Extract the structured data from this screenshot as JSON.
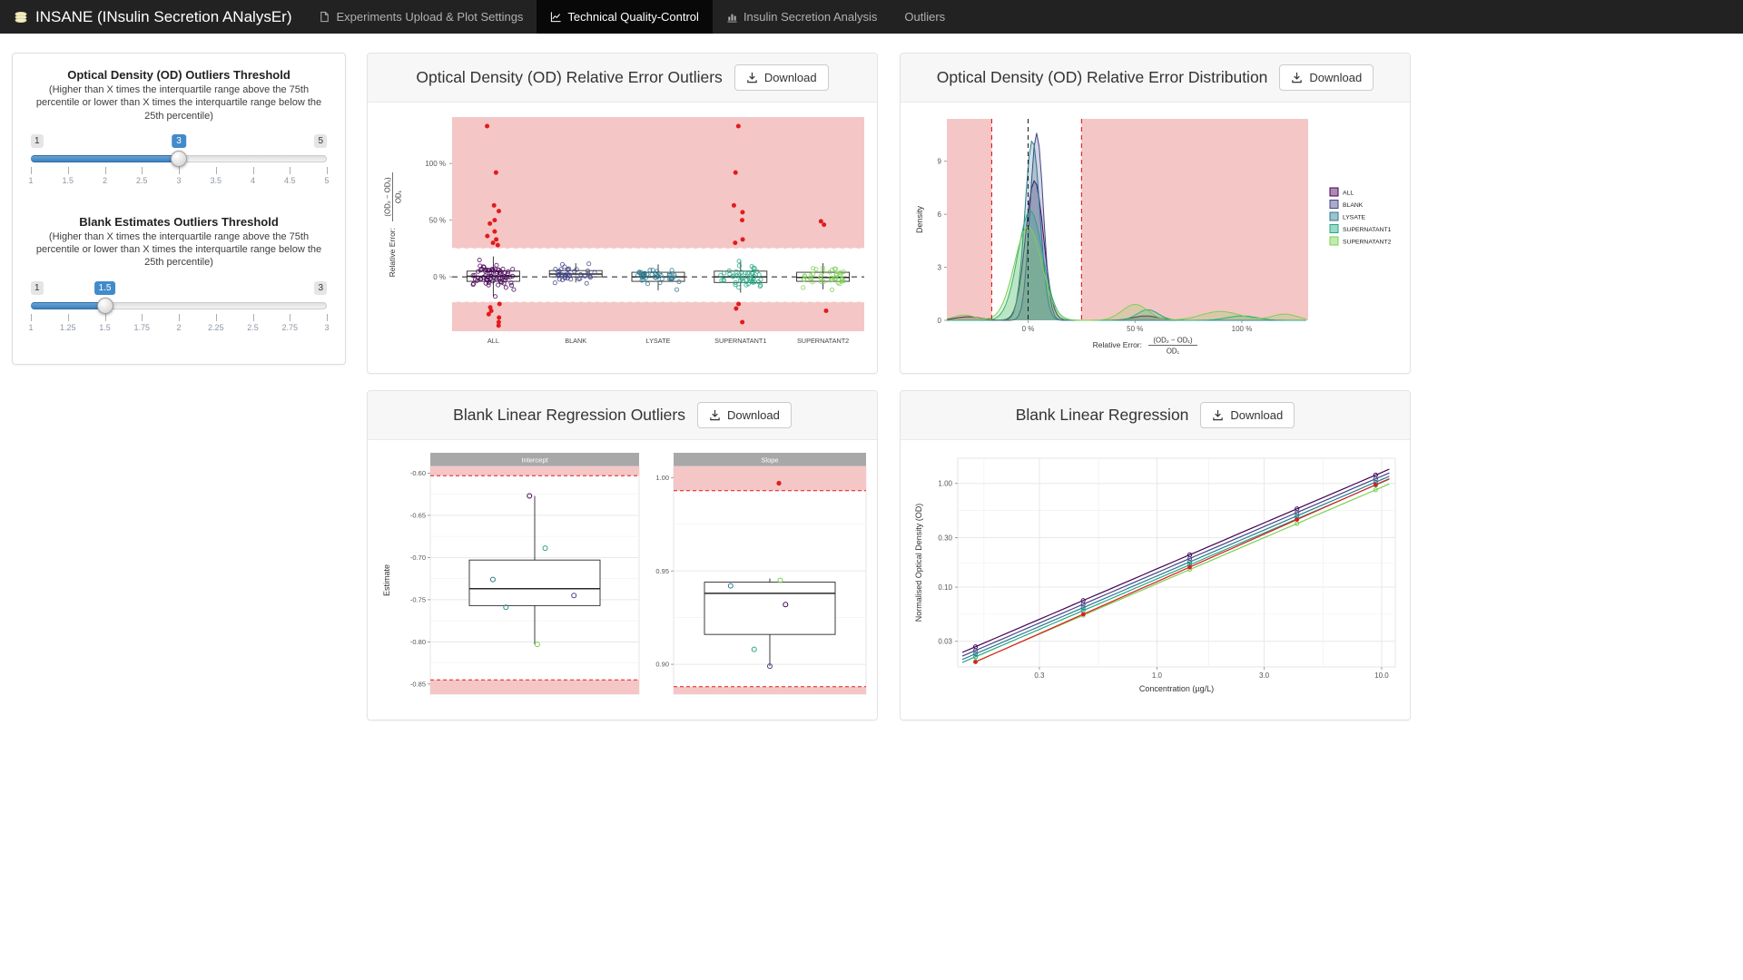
{
  "navbar": {
    "brand": "INSANE (INsulin Secretion ANalysEr)",
    "items": [
      {
        "label": "Experiments Upload & Plot Settings",
        "icon": "file-icon",
        "active": false
      },
      {
        "label": "Technical Quality-Control",
        "icon": "chart-line-icon",
        "active": true
      },
      {
        "label": "Insulin Secretion Analysis",
        "icon": "chart-bar-icon",
        "active": false
      },
      {
        "label": "Outliers",
        "icon": "",
        "active": false
      }
    ]
  },
  "sidebar": {
    "sliders": [
      {
        "title": "Optical Density (OD) Outliers Threshold",
        "subtitle": "(Higher than X times the interquartile range above the 75th percentile or lower than X times the interquartile range below the 25th percentile)",
        "min": 1,
        "max": 5,
        "value": 3,
        "min_label": "1",
        "max_label": "5",
        "value_label": "3",
        "ticks": [
          "1",
          "1.5",
          "2",
          "2.5",
          "3",
          "3.5",
          "4",
          "4.5",
          "5"
        ]
      },
      {
        "title": "Blank Estimates Outliers Threshold",
        "subtitle": "(Higher than X times the interquartile range above the 75th percentile or lower than X times the interquartile range below the 25th percentile)",
        "min": 1,
        "max": 3,
        "value": 1.5,
        "min_label": "1",
        "max_label": "3",
        "value_label": "1.5",
        "ticks": [
          "1",
          "1.25",
          "1.5",
          "1.75",
          "2",
          "2.25",
          "2.5",
          "2.75",
          "3"
        ]
      }
    ]
  },
  "panels": [
    {
      "title": "Optical Density (OD) Relative Error Outliers",
      "download": "Download"
    },
    {
      "title": "Optical Density (OD) Relative Error Distribution",
      "download": "Download"
    },
    {
      "title": "Blank Linear Regression Outliers",
      "download": "Download"
    },
    {
      "title": "Blank Linear Regression",
      "download": "Download"
    }
  ],
  "chart_data": [
    {
      "type": "box-jitter",
      "title": "Optical Density (OD) Relative Error Outliers",
      "ylabel": {
        "prefix": "Relative Error:",
        "numerator": "(OD₂ − OD₁)",
        "denominator": "OD₁"
      },
      "ylim": [
        -48,
        141
      ],
      "yticks": [
        {
          "v": 0,
          "label": "0 %"
        },
        {
          "v": 50,
          "label": "50 %"
        },
        {
          "v": 100,
          "label": "100 %"
        }
      ],
      "threshold_upper": 25,
      "threshold_lower": -22,
      "region_color": "#f5c6c6",
      "outlier_color": "#e31a1c",
      "categories": [
        {
          "name": "ALL",
          "color": "#440154",
          "n_jitter": 75,
          "jitter_sd": 6,
          "box": {
            "q1": -4,
            "median": 0.5,
            "q3": 5,
            "whisker_low": -17,
            "whisker_high": 18
          },
          "outliers_red": [
            133,
            92,
            63,
            58,
            50,
            47,
            40,
            36,
            33,
            30,
            28,
            -24,
            -27,
            -30,
            -33,
            -36,
            -40,
            -43
          ]
        },
        {
          "name": "BLANK",
          "color": "#414487",
          "n_jitter": 38,
          "jitter_sd": 4,
          "box": {
            "q1": 0,
            "median": 2.5,
            "q3": 5.5,
            "whisker_low": -5,
            "whisker_high": 12
          },
          "outliers_red": []
        },
        {
          "name": "LYSATE",
          "color": "#2a788e",
          "n_jitter": 42,
          "jitter_sd": 4.5,
          "box": {
            "q1": -4,
            "median": 0,
            "q3": 4,
            "whisker_low": -12,
            "whisker_high": 11
          },
          "outliers_red": []
        },
        {
          "name": "SUPERNATANT1",
          "color": "#22a884",
          "n_jitter": 48,
          "jitter_sd": 5.5,
          "box": {
            "q1": -5,
            "median": 0,
            "q3": 5,
            "whisker_low": -14,
            "whisker_high": 14
          },
          "outliers_red": [
            133,
            92,
            63,
            57,
            50,
            33,
            30,
            -24,
            -28,
            -40
          ]
        },
        {
          "name": "SUPERNATANT2",
          "color": "#7ad151",
          "n_jitter": 40,
          "jitter_sd": 5,
          "box": {
            "q1": -4,
            "median": -0.5,
            "q3": 4,
            "whisker_low": -11,
            "whisker_high": 12
          },
          "outliers_red": [
            49,
            46,
            -30
          ]
        }
      ]
    },
    {
      "type": "density",
      "title": "Optical Density (OD) Relative Error Distribution",
      "xlabel": {
        "prefix": "Relative Error:",
        "numerator": "(OD₂ − OD₁)",
        "denominator": "OD₁"
      },
      "ylabel": "Density",
      "xlim": [
        -38,
        131
      ],
      "ylim": [
        0,
        11.4
      ],
      "xticks": [
        {
          "v": 0,
          "label": "0 %"
        },
        {
          "v": 50,
          "label": "50 %"
        },
        {
          "v": 100,
          "label": "100 %"
        }
      ],
      "yticks": [
        0,
        3,
        6,
        9
      ],
      "threshold_lower": -17,
      "threshold_upper": 25,
      "region_color": "#f5c6c6",
      "outlier_color": "#e31a1c",
      "series": [
        {
          "name": "ALL",
          "color": "#440154",
          "peaks": [
            {
              "mu": 3,
              "sigma": 4.2,
              "h": 7.9
            },
            {
              "mu": 55,
              "sigma": 6,
              "h": 0.25
            },
            {
              "mu": -28,
              "sigma": 6,
              "h": 0.2
            }
          ]
        },
        {
          "name": "BLANK",
          "color": "#414487",
          "peaks": [
            {
              "mu": 4,
              "sigma": 3.1,
              "h": 10.6
            }
          ]
        },
        {
          "name": "LYSATE",
          "color": "#2a788e",
          "peaks": [
            {
              "mu": 2,
              "sigma": 3.5,
              "h": 10.2
            }
          ]
        },
        {
          "name": "SUPERNATANT1",
          "color": "#22a884",
          "peaks": [
            {
              "mu": 1,
              "sigma": 5.8,
              "h": 6.2
            },
            {
              "mu": 56,
              "sigma": 5,
              "h": 0.6
            },
            {
              "mu": 100,
              "sigma": 7,
              "h": 0.25
            }
          ]
        },
        {
          "name": "SUPERNATANT2",
          "color": "#7ad151",
          "peaks": [
            {
              "mu": 0,
              "sigma": 6.4,
              "h": 5.3
            },
            {
              "mu": 50,
              "sigma": 6,
              "h": 0.9
            },
            {
              "mu": 90,
              "sigma": 9,
              "h": 0.5
            },
            {
              "mu": 120,
              "sigma": 6,
              "h": 0.35
            },
            {
              "mu": -30,
              "sigma": 5,
              "h": 0.3
            }
          ]
        }
      ],
      "legend": [
        "ALL",
        "BLANK",
        "LYSATE",
        "SUPERNATANT1",
        "SUPERNATANT2"
      ]
    },
    {
      "type": "facet-box",
      "title": "Blank Linear Regression Outliers",
      "ylabel": "Estimate",
      "region_color": "#f5c6c6",
      "outlier_color": "#e31a1c",
      "facets": [
        {
          "name": "Intercept",
          "ylim": [
            -0.862,
            -0.592
          ],
          "yticks": [
            -0.6,
            -0.65,
            -0.7,
            -0.75,
            -0.8,
            -0.85
          ],
          "threshold_upper": -0.603,
          "threshold_lower": -0.845,
          "box": {
            "q1": -0.757,
            "median": -0.737,
            "q3": -0.703,
            "whisker_low": -0.803,
            "whisker_high": -0.627
          },
          "points": [
            {
              "v": -0.627,
              "color": "#440154",
              "x_off": -0.04
            },
            {
              "v": -0.689,
              "color": "#22a884",
              "x_off": 0.08
            },
            {
              "v": -0.726,
              "color": "#2a788e",
              "x_off": -0.32
            },
            {
              "v": -0.745,
              "color": "#414487",
              "x_off": 0.3
            },
            {
              "v": -0.759,
              "color": "#21908d",
              "x_off": -0.22
            },
            {
              "v": -0.803,
              "color": "#7ad151",
              "x_off": 0.02
            }
          ],
          "outliers_red": []
        },
        {
          "name": "Slope",
          "ylim": [
            0.884,
            1.006
          ],
          "yticks": [
            1.0,
            0.95,
            0.9
          ],
          "threshold_upper": 0.993,
          "threshold_lower": 0.888,
          "box": {
            "q1": 0.916,
            "median": 0.938,
            "q3": 0.944,
            "whisker_low": 0.899,
            "whisker_high": 0.946
          },
          "points": [
            {
              "v": 0.942,
              "color": "#2a788e",
              "x_off": -0.3
            },
            {
              "v": 0.945,
              "color": "#7ad151",
              "x_off": 0.08
            },
            {
              "v": 0.932,
              "color": "#440154",
              "x_off": 0.12
            },
            {
              "v": 0.908,
              "color": "#22a884",
              "x_off": -0.12
            },
            {
              "v": 0.899,
              "color": "#414487",
              "x_off": 0.0
            }
          ],
          "outliers_red": [
            0.997
          ]
        }
      ]
    },
    {
      "type": "loglog-lines",
      "title": "Blank Linear Regression",
      "xlabel": "Concentration (µg/L)",
      "ylabel": "Normalised Optical Density (OD)",
      "xlim": [
        0.13,
        11.5
      ],
      "ylim": [
        0.017,
        1.75
      ],
      "xticks": [
        {
          "v": 0.3,
          "label": "0.3"
        },
        {
          "v": 1.0,
          "label": "1.0"
        },
        {
          "v": 3.0,
          "label": "3.0"
        },
        {
          "v": 10.0,
          "label": "10.0"
        }
      ],
      "yticks": [
        {
          "v": 0.03,
          "label": "0.03"
        },
        {
          "v": 0.1,
          "label": "0.10"
        },
        {
          "v": 0.3,
          "label": "0.30"
        },
        {
          "v": 1.0,
          "label": "1.00"
        }
      ],
      "x_minor": [
        0.17,
        0.55,
        1.7,
        5.5
      ],
      "y_minor": [
        0.055,
        0.17,
        0.55
      ],
      "x_points": [
        0.156,
        0.47,
        1.4,
        4.2,
        9.4
      ],
      "series": [
        {
          "color": "#440154",
          "a": 0.15,
          "b": 0.93,
          "point_style": "open"
        },
        {
          "color": "#414487",
          "a": 0.138,
          "b": 0.93,
          "point_style": "open"
        },
        {
          "color": "#2a788e",
          "a": 0.128,
          "b": 0.93,
          "point_style": "open"
        },
        {
          "color": "#22a884",
          "a": 0.12,
          "b": 0.93,
          "point_style": "open"
        },
        {
          "color": "#7ad151",
          "a": 0.108,
          "b": 0.93,
          "point_style": "open"
        },
        {
          "color": "#e31a1c",
          "a": 0.113,
          "b": 0.96,
          "point_style": "filled"
        }
      ]
    }
  ],
  "style": {
    "accent_blue": "#428bca",
    "outlier_red": "#e31a1c",
    "region_pink": "#f5c6c6",
    "navbar_bg": "#222222"
  }
}
